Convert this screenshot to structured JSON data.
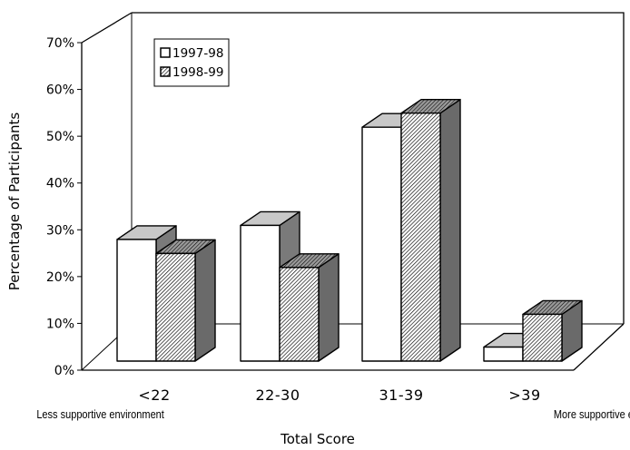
{
  "chart_data": {
    "type": "bar",
    "style": "3d-clustered",
    "categories": [
      "<22",
      "22-30",
      "31-39",
      ">39"
    ],
    "category_notes": [
      "Less supportive environment",
      "",
      "",
      "More supportive environment"
    ],
    "series": [
      {
        "name": "1997-98",
        "values": [
          26,
          29,
          50,
          3
        ],
        "fill": "white"
      },
      {
        "name": "1998-99",
        "values": [
          23,
          20,
          53,
          10
        ],
        "fill": "diagonal-hatch"
      }
    ],
    "yticks": [
      "0%",
      "10%",
      "20%",
      "30%",
      "40%",
      "50%",
      "60%",
      "70%"
    ],
    "ylim": [
      0,
      70
    ],
    "ylabel": "Percentage of Participants",
    "xlabel": "Total Score",
    "legend_position": "top-left",
    "grid": false
  }
}
